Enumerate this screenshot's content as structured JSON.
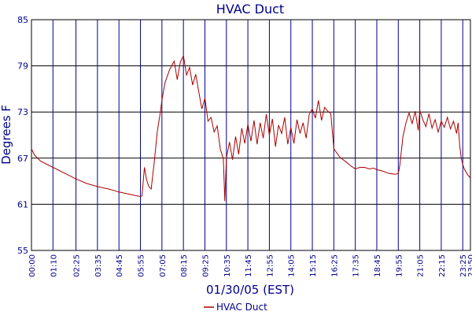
{
  "chart_data": {
    "type": "line",
    "title": "HVAC Duct",
    "ylabel": "Degrees F",
    "xlabel": "01/30/05 (EST)",
    "ylim": [
      55,
      85
    ],
    "yticks": [
      55,
      61,
      67,
      73,
      79,
      85
    ],
    "grid": true,
    "legend_position": "bottom-center",
    "x_ticks": [
      "00:00",
      "01:10",
      "02:25",
      "03:35",
      "04:45",
      "05:55",
      "07:05",
      "08:15",
      "09:25",
      "10:35",
      "11:45",
      "12:55",
      "14:05",
      "15:15",
      "16:25",
      "17:35",
      "18:45",
      "19:55",
      "21:05",
      "22:15",
      "23:25",
      "23:50"
    ],
    "series": [
      {
        "name": "HVAC Duct",
        "color": "#aa0000",
        "x": [
          "00:00",
          "00:10",
          "00:30",
          "01:10",
          "01:50",
          "02:25",
          "03:00",
          "03:35",
          "04:10",
          "04:45",
          "05:20",
          "05:55",
          "06:00",
          "06:08",
          "06:15",
          "06:22",
          "06:30",
          "06:40",
          "06:50",
          "07:00",
          "07:05",
          "07:15",
          "07:30",
          "07:45",
          "07:55",
          "08:05",
          "08:15",
          "08:25",
          "08:35",
          "08:45",
          "08:55",
          "09:05",
          "09:15",
          "09:25",
          "09:35",
          "09:45",
          "09:55",
          "10:05",
          "10:15",
          "10:25",
          "10:30",
          "10:35",
          "10:45",
          "10:55",
          "11:05",
          "11:15",
          "11:25",
          "11:35",
          "11:45",
          "11:55",
          "12:05",
          "12:15",
          "12:25",
          "12:35",
          "12:45",
          "12:55",
          "13:05",
          "13:15",
          "13:25",
          "13:35",
          "13:45",
          "13:55",
          "14:05",
          "14:15",
          "14:25",
          "14:35",
          "14:45",
          "14:55",
          "15:05",
          "15:15",
          "15:25",
          "15:35",
          "15:45",
          "15:55",
          "16:05",
          "16:15",
          "16:25",
          "16:45",
          "17:05",
          "17:20",
          "17:35",
          "17:50",
          "18:05",
          "18:20",
          "18:35",
          "18:45",
          "19:05",
          "19:25",
          "19:45",
          "19:55",
          "20:00",
          "20:10",
          "20:20",
          "20:30",
          "20:40",
          "20:50",
          "21:00",
          "21:05",
          "21:15",
          "21:25",
          "21:35",
          "21:45",
          "21:55",
          "22:05",
          "22:15",
          "22:25",
          "22:35",
          "22:45",
          "22:55",
          "23:05",
          "23:10",
          "23:15",
          "23:20",
          "23:25",
          "23:30",
          "23:40",
          "23:50"
        ],
        "y": [
          68.2,
          67.4,
          66.6,
          65.8,
          65.0,
          64.3,
          63.7,
          63.3,
          63.0,
          62.6,
          62.3,
          62.0,
          62.1,
          65.8,
          64.2,
          63.3,
          63.0,
          66.5,
          70.5,
          73.0,
          74.5,
          76.8,
          78.5,
          79.6,
          77.2,
          79.5,
          80.3,
          77.8,
          78.8,
          76.5,
          77.9,
          75.6,
          73.4,
          74.8,
          71.8,
          72.3,
          70.4,
          71.2,
          68.2,
          66.9,
          61.4,
          67.0,
          69.1,
          66.8,
          69.8,
          67.5,
          70.9,
          68.9,
          71.4,
          69.2,
          71.9,
          68.8,
          71.6,
          69.6,
          72.7,
          70.0,
          72.1,
          68.5,
          71.3,
          70.2,
          72.3,
          68.8,
          71.0,
          68.9,
          72.0,
          70.2,
          71.6,
          69.6,
          72.7,
          73.4,
          72.2,
          74.5,
          71.9,
          73.6,
          73.1,
          72.8,
          68.2,
          67.1,
          66.5,
          66.0,
          65.6,
          65.8,
          65.8,
          65.6,
          65.7,
          65.5,
          65.3,
          65.0,
          64.9,
          65.0,
          66.1,
          69.8,
          71.6,
          72.9,
          71.5,
          73.1,
          70.6,
          73.2,
          72.0,
          71.1,
          72.8,
          70.9,
          72.0,
          70.4,
          71.8,
          71.0,
          72.3,
          70.8,
          71.8,
          70.2,
          71.6,
          68.7,
          67.0,
          66.2,
          65.6,
          64.9,
          64.4
        ]
      }
    ]
  }
}
